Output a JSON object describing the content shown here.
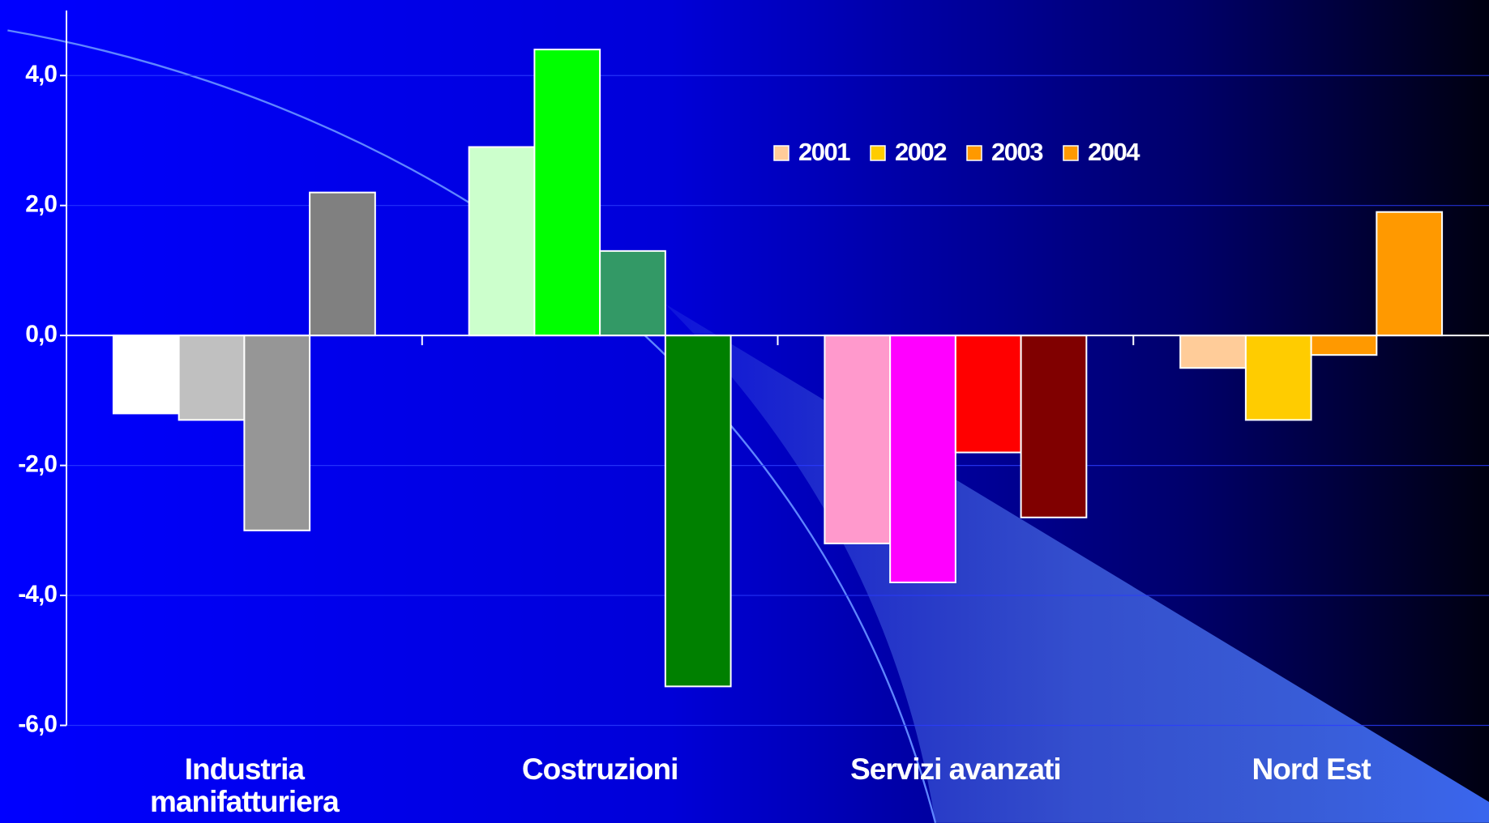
{
  "chart_data": {
    "type": "bar",
    "categories": [
      "Industria manifatturiera",
      "Costruzioni",
      "Servizi avanzati",
      "Nord Est"
    ],
    "series": [
      {
        "name": "2001",
        "color": "#ffcc99",
        "bar_colors": [
          "#ffffff",
          "#ccffcc",
          "#ff99cc",
          "#ffcc99"
        ],
        "values": [
          -1.2,
          2.9,
          -3.2,
          -0.5
        ]
      },
      {
        "name": "2002",
        "color": "#ffcc00",
        "bar_colors": [
          "#c0c0c0",
          "#00ff00",
          "#ff00ff",
          "#ffcc00"
        ],
        "values": [
          -1.3,
          4.4,
          -3.8,
          -1.3
        ]
      },
      {
        "name": "2003",
        "color": "#ff9900",
        "bar_colors": [
          "#969696",
          "#339966",
          "#ff0000",
          "#ff9900"
        ],
        "values": [
          -3.0,
          1.3,
          -1.8,
          -0.3
        ]
      },
      {
        "name": "2004",
        "color": "#ff9900",
        "bar_colors": [
          "#808080",
          "#008000",
          "#800000",
          "#ff9900"
        ],
        "values": [
          2.2,
          -5.4,
          -2.8,
          1.9
        ]
      }
    ],
    "ylim": [
      -6,
      5
    ],
    "yticks": [
      {
        "value": -6,
        "label": "-6,0"
      },
      {
        "value": -4,
        "label": "-4,0"
      },
      {
        "value": -2,
        "label": "-2,0"
      },
      {
        "value": 0,
        "label": "0,0"
      },
      {
        "value": 2,
        "label": "2,0"
      },
      {
        "value": 4,
        "label": "4,0"
      }
    ],
    "grid": true,
    "legend": "top"
  }
}
